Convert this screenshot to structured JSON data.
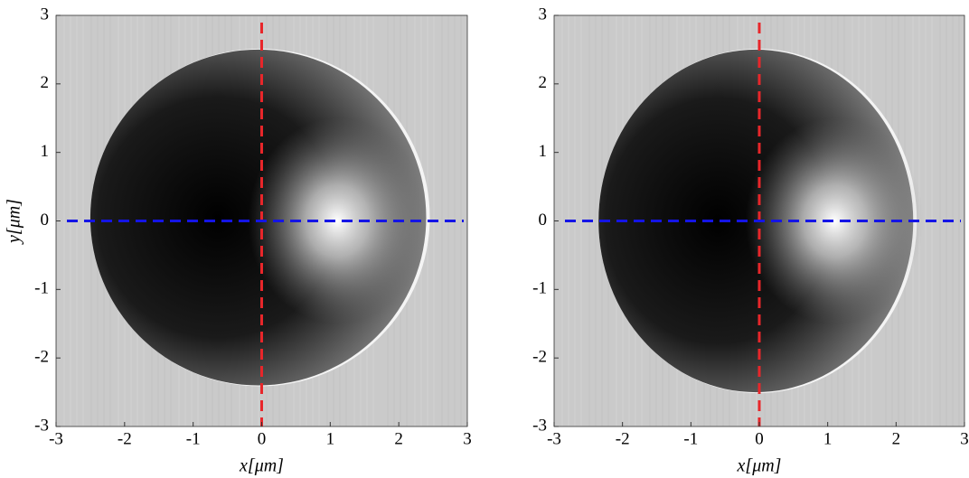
{
  "chart_data": [
    {
      "type": "image",
      "xlim": [
        -3,
        3
      ],
      "ylim": [
        -3,
        3
      ],
      "xticks": [
        -3,
        -2,
        -1,
        0,
        1,
        2,
        3
      ],
      "yticks": [
        -3,
        -2,
        -1,
        0,
        1,
        2,
        3
      ],
      "xlabel": "x[μm]",
      "ylabel": "y[μm]",
      "background": "#cacaca",
      "dome": {
        "cx": -0.05,
        "cy": 0.05,
        "rx": 2.45,
        "ry": 2.45
      },
      "highlight": {
        "x": 1.1,
        "y": 0
      },
      "crosshair": {
        "x": 0,
        "y": 0,
        "x_color": "#e8262a",
        "y_color": "#1414e6"
      }
    },
    {
      "type": "image",
      "xlim": [
        -3,
        3
      ],
      "ylim": [
        -3,
        3
      ],
      "xticks": [
        -3,
        -2,
        -1,
        0,
        1,
        2,
        3
      ],
      "yticks": [
        -3,
        -2,
        -1,
        0,
        1,
        2,
        3
      ],
      "xlabel": "x[μm]",
      "background": "#cacaca",
      "dome": {
        "cx": -0.05,
        "cy": 0.0,
        "rx": 2.3,
        "ry": 2.5
      },
      "highlight": {
        "x": 1.1,
        "y": 0
      },
      "crosshair": {
        "x": 0,
        "y": 0,
        "x_color": "#e8262a",
        "y_color": "#1414e6"
      }
    }
  ]
}
